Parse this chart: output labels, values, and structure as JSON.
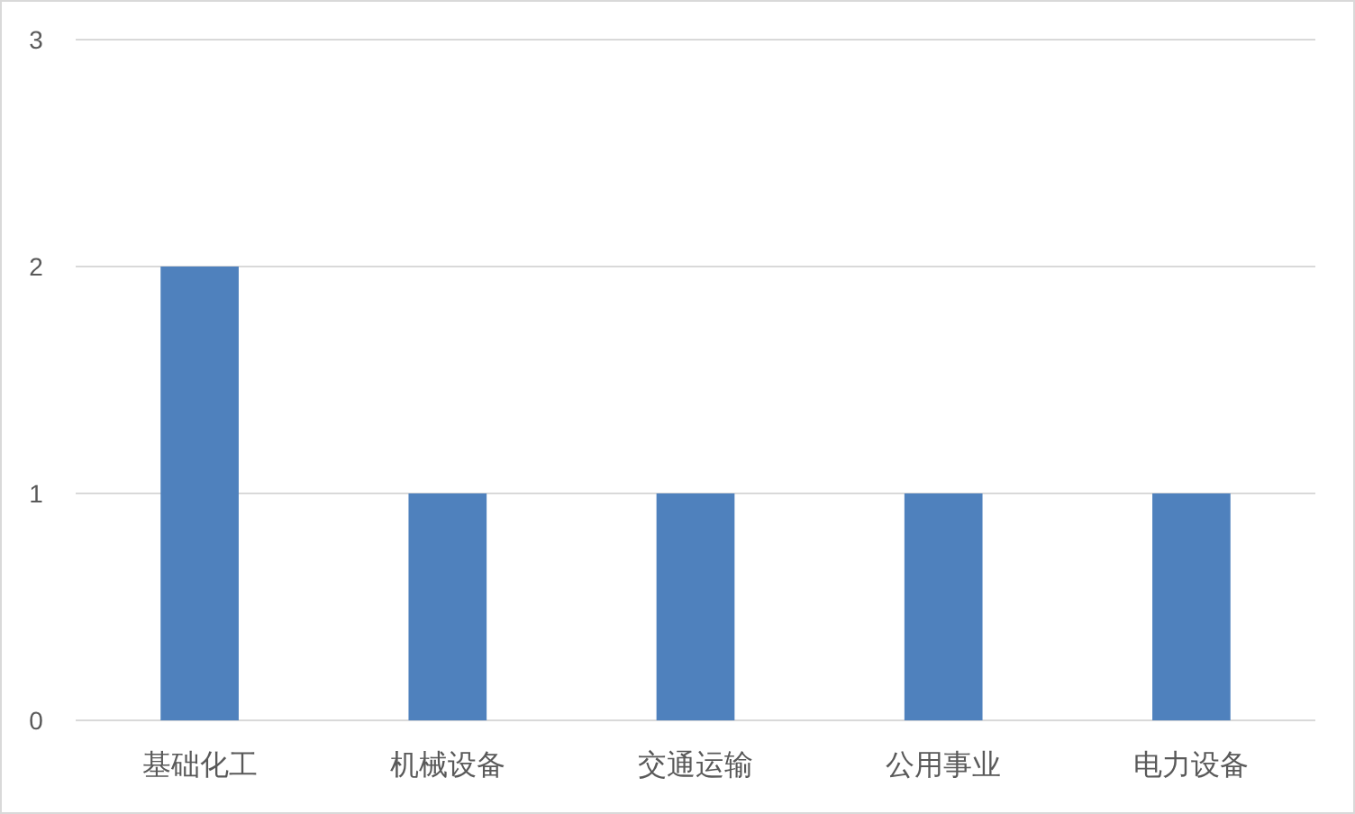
{
  "chart_data": {
    "type": "bar",
    "categories": [
      "基础化工",
      "机械设备",
      "交通运输",
      "公用事业",
      "电力设备"
    ],
    "values": [
      2,
      1,
      1,
      1,
      1
    ],
    "color": "#4f81bd",
    "ylim": [
      0,
      3
    ],
    "yticks": [
      0,
      1,
      2,
      3
    ],
    "grid": "y"
  }
}
